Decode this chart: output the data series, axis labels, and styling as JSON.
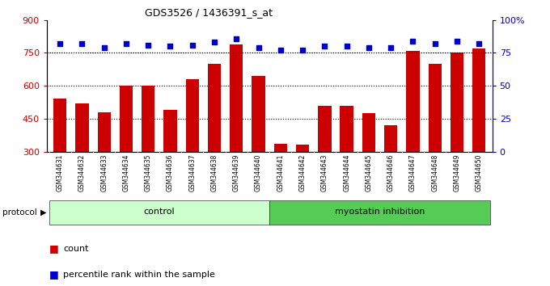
{
  "title": "GDS3526 / 1436391_s_at",
  "samples": [
    "GSM344631",
    "GSM344632",
    "GSM344633",
    "GSM344634",
    "GSM344635",
    "GSM344636",
    "GSM344637",
    "GSM344638",
    "GSM344639",
    "GSM344640",
    "GSM344641",
    "GSM344642",
    "GSM344643",
    "GSM344644",
    "GSM344645",
    "GSM344646",
    "GSM344647",
    "GSM344648",
    "GSM344649",
    "GSM344650"
  ],
  "counts": [
    540,
    520,
    480,
    600,
    600,
    490,
    630,
    700,
    790,
    645,
    335,
    330,
    510,
    510,
    475,
    420,
    760,
    700,
    750,
    770
  ],
  "percentile_ranks": [
    82,
    82,
    79,
    82,
    81,
    80,
    81,
    83,
    86,
    79,
    77,
    77,
    80,
    80,
    79,
    79,
    84,
    82,
    84,
    82
  ],
  "bar_color": "#cc0000",
  "dot_color": "#0000cc",
  "ymin": 300,
  "ymax": 900,
  "yticks": [
    300,
    450,
    600,
    750,
    900
  ],
  "y2min": 0,
  "y2max": 100,
  "y2ticks": [
    0,
    25,
    50,
    75,
    100
  ],
  "control_color": "#ccffcc",
  "myostatin_color": "#55cc55",
  "xticklabel_bg": "#dddddd",
  "grid_color": "#000000",
  "bg_color": "#ffffff",
  "tick_label_color_left": "#cc0000",
  "tick_label_color_right": "#0000cc"
}
